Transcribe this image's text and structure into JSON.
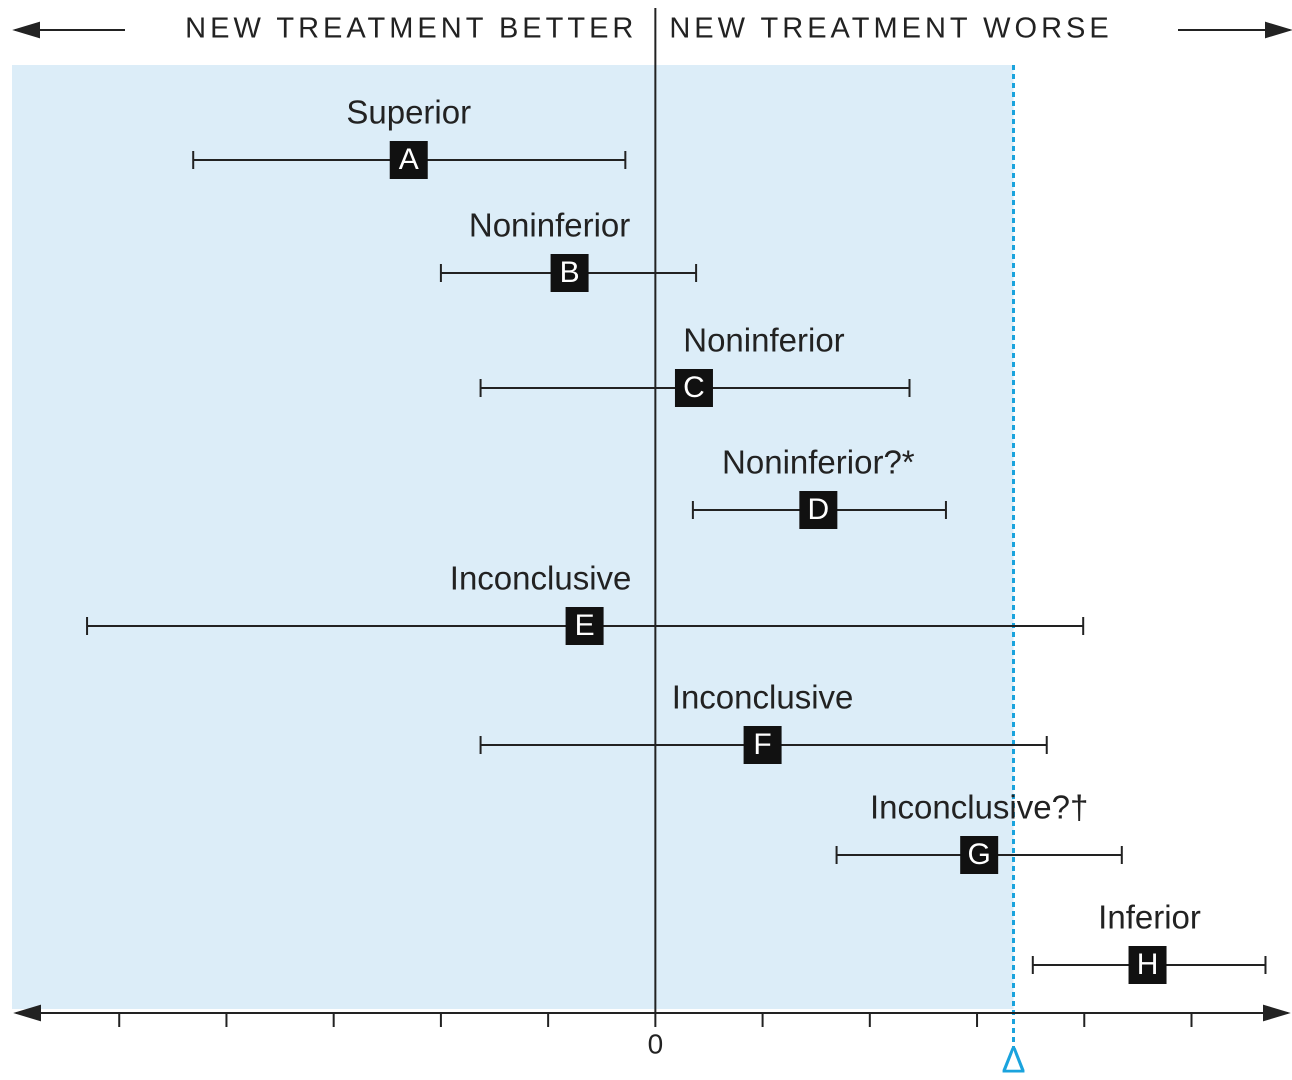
{
  "chart_data": {
    "type": "forest",
    "header_left": "NEW TREATMENT BETTER",
    "header_right": "NEW TREATMENT WORSE",
    "categories": [
      "A",
      "B",
      "C",
      "D",
      "E",
      "F",
      "G",
      "H"
    ],
    "annotations": [
      "Superior",
      "Noninferior",
      "Noninferior",
      "Noninferior?*",
      "Inconclusive",
      "Inconclusive",
      "Inconclusive?†",
      "Inferior"
    ],
    "values": [
      -2.3,
      -0.8,
      0.36,
      1.52,
      -0.66,
      1.0,
      3.02,
      4.59
    ],
    "lower": [
      -4.31,
      -2.0,
      -1.63,
      0.35,
      -5.3,
      -1.63,
      1.69,
      3.52
    ],
    "upper": [
      -0.28,
      0.38,
      2.37,
      2.71,
      3.99,
      3.65,
      4.35,
      5.69
    ],
    "margin": {
      "value": 3.34,
      "label": "Δ"
    },
    "xlim": [
      -6,
      5.9
    ],
    "xticks": [
      {
        "value": -5,
        "label": null
      },
      {
        "value": -4,
        "label": null
      },
      {
        "value": -3,
        "label": null
      },
      {
        "value": -2,
        "label": null
      },
      {
        "value": -1,
        "label": null
      },
      0,
      {
        "value": 1,
        "label": null
      },
      {
        "value": 2,
        "label": null
      },
      {
        "value": 3,
        "label": null
      },
      {
        "value": 4,
        "label": null
      },
      {
        "value": 5,
        "label": null
      }
    ],
    "shade_color": "#dcedf8",
    "margin_color": "#1aa3dd",
    "color": "#222222"
  }
}
